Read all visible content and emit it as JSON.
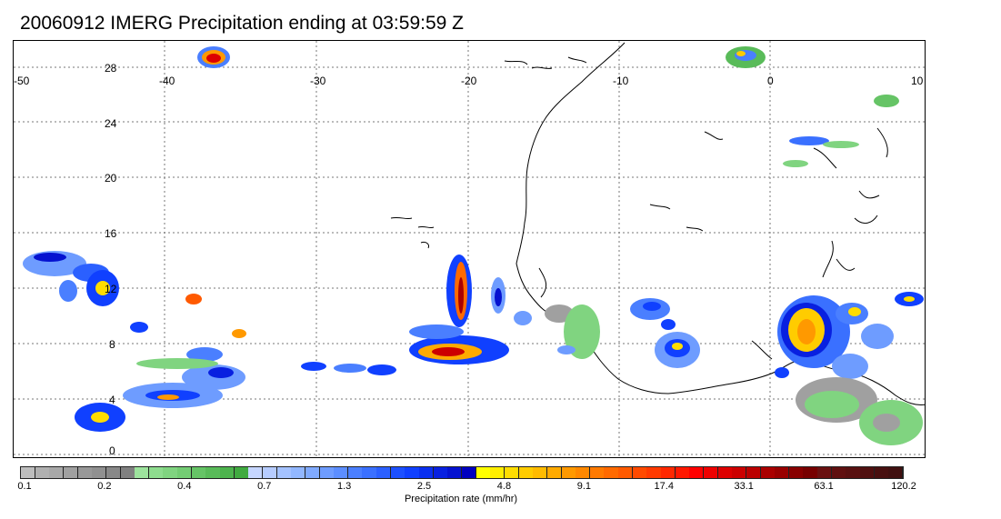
{
  "title": "20060912 IMERG Precipitation ending at 03:59:59 Z",
  "map": {
    "lon_labels": [
      "-50",
      "-40",
      "-30",
      "-20",
      "-10",
      "0",
      "10"
    ],
    "lat_labels": [
      "28",
      "24",
      "20",
      "16",
      "12",
      "8",
      "4",
      "0"
    ]
  },
  "colorbar": {
    "title": "Precipitation rate (mm/hr)",
    "tick_labels": [
      "0.1",
      "0.2",
      "0.4",
      "0.7",
      "1.3",
      "2.5",
      "4.8",
      "9.1",
      "17.4",
      "33.1",
      "63.1",
      "120.2"
    ],
    "colors": [
      "#bdbdbd",
      "#b0b0b0",
      "#a8a8a8",
      "#a0a0a0",
      "#989898",
      "#909090",
      "#888888",
      "#808080",
      "#9de39d",
      "#8edc8e",
      "#80d480",
      "#73cc73",
      "#66c466",
      "#59bb59",
      "#4db34d",
      "#40aa40",
      "#c6d6ff",
      "#b6ccff",
      "#a4c2ff",
      "#92b7ff",
      "#80aaff",
      "#6e9cff",
      "#5c8eff",
      "#4a7fff",
      "#3a70ff",
      "#2b60ff",
      "#1c50ff",
      "#1040ff",
      "#0a2ff0",
      "#0820e0",
      "#0512d0",
      "#0000c0",
      "#ffff00",
      "#ffee00",
      "#ffdd00",
      "#ffcc00",
      "#ffbb00",
      "#ffaa00",
      "#ff9900",
      "#ff8800",
      "#ff7a00",
      "#ff6a00",
      "#ff5a00",
      "#ff4a00",
      "#ff3a00",
      "#ff2800",
      "#ff1800",
      "#ff0000",
      "#ee0000",
      "#dd0000",
      "#cc0000",
      "#bb0000",
      "#aa0000",
      "#990000",
      "#880000",
      "#770000",
      "#6a1010",
      "#601010",
      "#581010",
      "#501010",
      "#481010",
      "#401010"
    ]
  }
}
